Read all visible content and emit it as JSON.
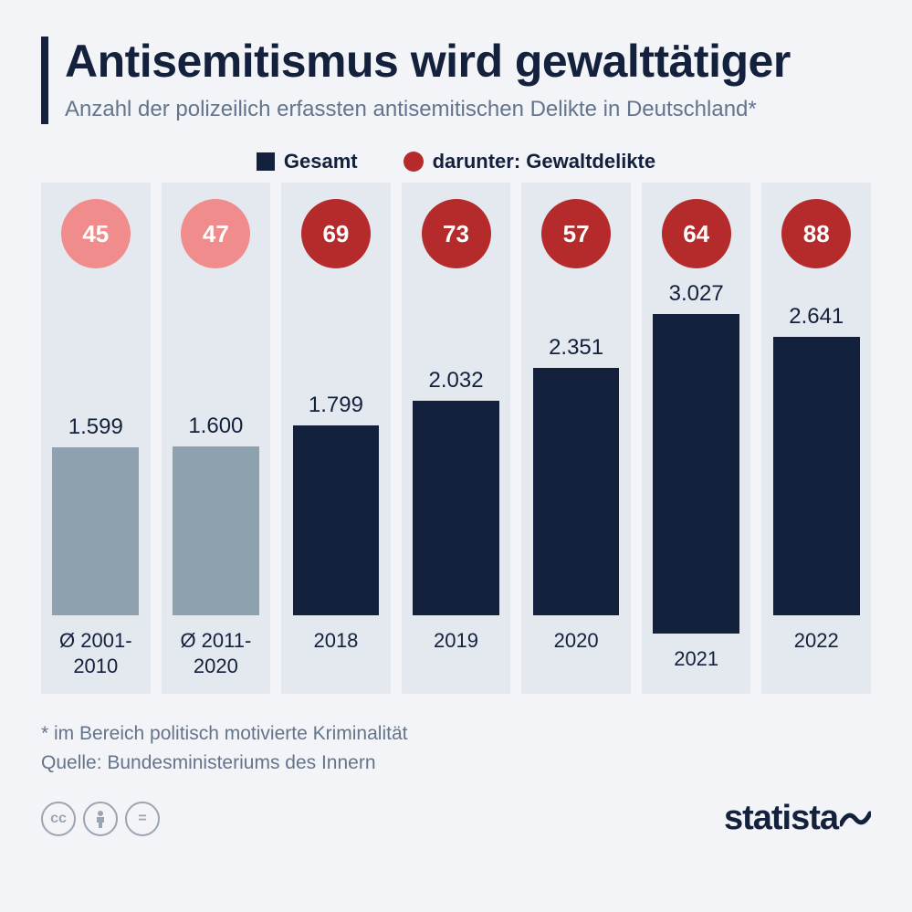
{
  "header": {
    "title": "Antisemitismus wird gewalttätiger",
    "subtitle": "Anzahl der polizeilich erfassten antisemitischen Delikte in Deutschland*"
  },
  "legend": {
    "total_label": "Gesamt",
    "violent_label": "darunter: Gewaltdelikte",
    "total_color": "#14213d",
    "violent_color": "#b52b2b"
  },
  "chart": {
    "type": "bar",
    "max_value": 3200,
    "bar_area_height": 370,
    "columns": [
      {
        "label": "Ø 2001-2010",
        "total": 1599,
        "total_text": "1.599",
        "violent": 45,
        "bar_color": "#8ea1ae",
        "circle_color": "#f08c8c",
        "bg": true
      },
      {
        "label": "Ø 2011-2020",
        "total": 1600,
        "total_text": "1.600",
        "violent": 47,
        "bar_color": "#8ea1ae",
        "circle_color": "#f08c8c",
        "bg": true
      },
      {
        "label": "2018",
        "total": 1799,
        "total_text": "1.799",
        "violent": 69,
        "bar_color": "#14213d",
        "circle_color": "#b52b2b",
        "bg": true
      },
      {
        "label": "2019",
        "total": 2032,
        "total_text": "2.032",
        "violent": 73,
        "bar_color": "#14213d",
        "circle_color": "#b52b2b",
        "bg": true
      },
      {
        "label": "2020",
        "total": 2351,
        "total_text": "2.351",
        "violent": 57,
        "bar_color": "#14213d",
        "circle_color": "#b52b2b",
        "bg": true
      },
      {
        "label": "2021",
        "total": 3027,
        "total_text": "3.027",
        "violent": 64,
        "bar_color": "#14213d",
        "circle_color": "#b52b2b",
        "bg": true
      },
      {
        "label": "2022",
        "total": 2641,
        "total_text": "2.641",
        "violent": 88,
        "bar_color": "#14213d",
        "circle_color": "#b52b2b",
        "bg": true
      }
    ]
  },
  "footer": {
    "footnote_line1": "* im Bereich politisch motivierte Kriminalität",
    "footnote_line2": "Quelle: Bundesministeriums des Innern",
    "logo": "statista"
  }
}
